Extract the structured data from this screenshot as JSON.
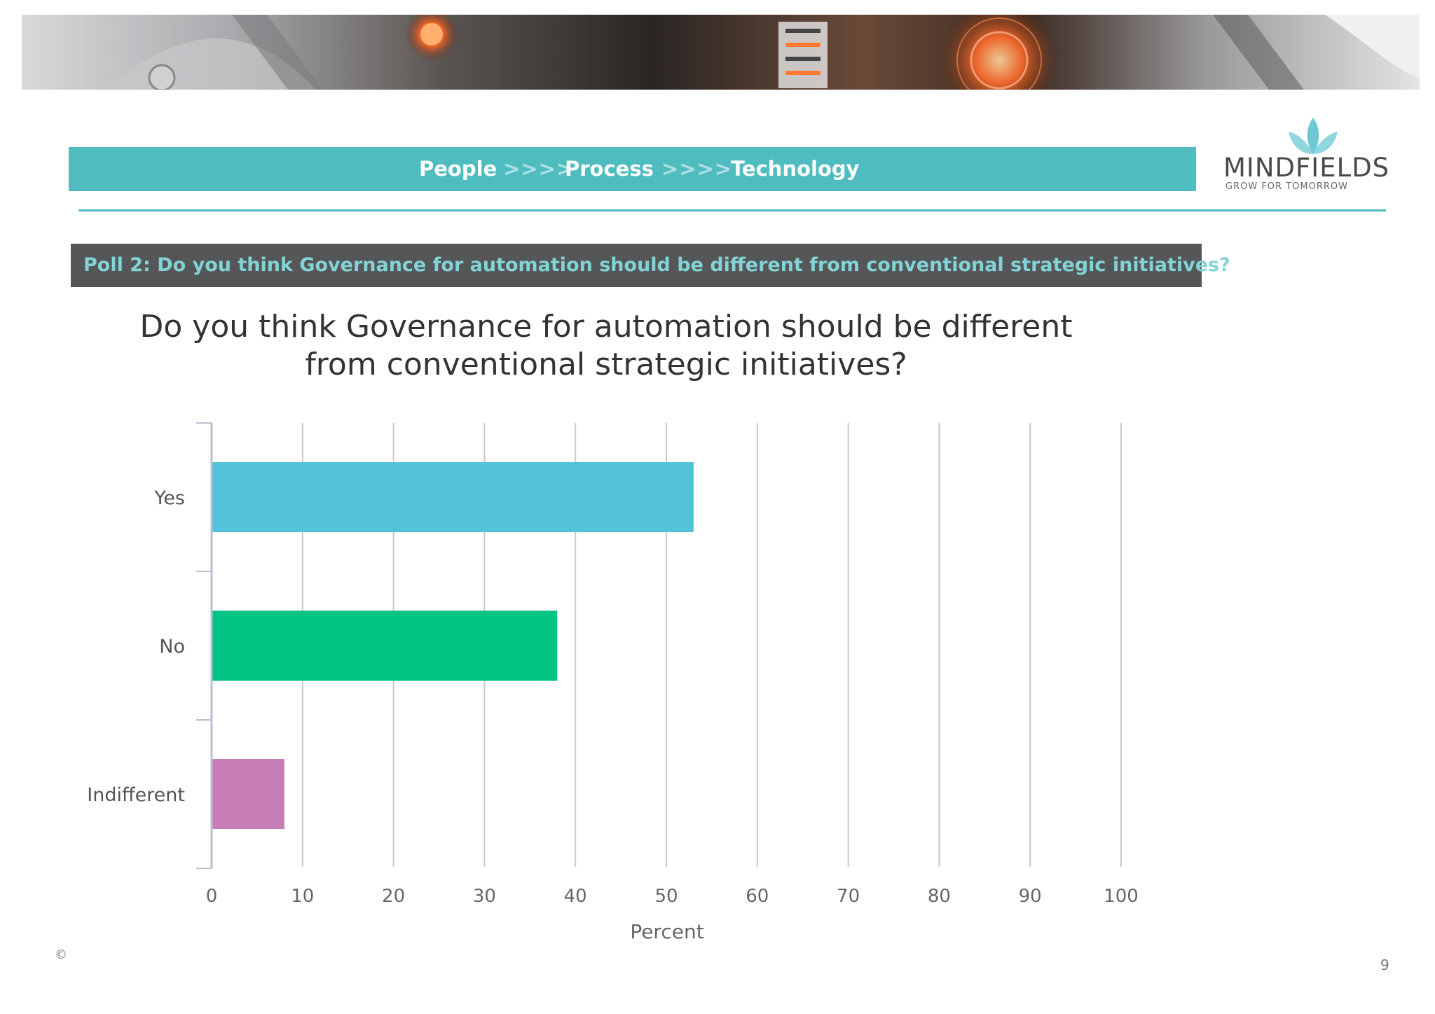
{
  "header": {
    "nav": [
      {
        "label": "People"
      },
      {
        "label": ">>>>"
      },
      {
        "label": "Process"
      },
      {
        "label": ">>>>"
      },
      {
        "label": "Technology"
      }
    ],
    "logo": {
      "name": "MINDFIELDS",
      "tagline": "GROW FOR TOMORROW",
      "color": "#5fc3cf"
    }
  },
  "poll": {
    "label": "Poll 2: Do you think Governance for automation should be different from conventional strategic initiatives?"
  },
  "chart_data": {
    "type": "bar",
    "orientation": "horizontal",
    "title_lines": [
      "Do you think Governance for automation should be different",
      "from conventional strategic initiatives?"
    ],
    "categories": [
      "Yes",
      "No",
      "Indifferent"
    ],
    "values": [
      53,
      38,
      8
    ],
    "colors": [
      "#53c2d8",
      "#00c384",
      "#c77db6"
    ],
    "xlabel": "Percent",
    "xlim": [
      0,
      100
    ],
    "xticks": [
      "0",
      "10",
      "20",
      "30",
      "40",
      "50",
      "60",
      "70",
      "80",
      "90",
      "100"
    ],
    "grid": "vertical"
  },
  "footer": {
    "copyright": "©",
    "page": "9"
  }
}
